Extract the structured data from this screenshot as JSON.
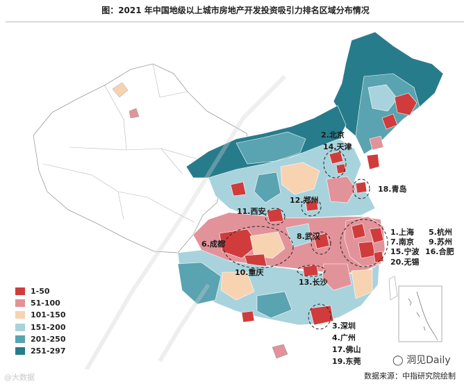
{
  "title": "图：2021 年中国地级以上城市房地产开发投资吸引力排名区域分布情况",
  "legend": [
    {
      "label": "1-50",
      "color": "#d03c3c"
    },
    {
      "label": "51-100",
      "color": "#e2939a"
    },
    {
      "label": "101-150",
      "color": "#f7d3b2"
    },
    {
      "label": "151-200",
      "color": "#a8d3dc"
    },
    {
      "label": "201-250",
      "color": "#5aa3b0"
    },
    {
      "label": "251-297",
      "color": "#277c8c"
    }
  ],
  "city_labels": [
    {
      "id": "beijing",
      "text": "2.北京"
    },
    {
      "id": "tianjin",
      "text": "14.天津"
    },
    {
      "id": "qingdao",
      "text": "18.青岛"
    },
    {
      "id": "xian",
      "text": "11.西安"
    },
    {
      "id": "zhengzhou",
      "text": "12.郑州"
    },
    {
      "id": "chengdu",
      "text": "6.成都"
    },
    {
      "id": "wuhan",
      "text": "8.武汉"
    },
    {
      "id": "chongqing",
      "text": "10.重庆"
    },
    {
      "id": "changsha",
      "text": "13.长沙"
    },
    {
      "id": "shanghai",
      "text": "1.上海"
    },
    {
      "id": "hangzhou",
      "text": "5.杭州"
    },
    {
      "id": "nanjing",
      "text": "7.南京"
    },
    {
      "id": "suzhou",
      "text": "9.苏州"
    },
    {
      "id": "wuxi",
      "text": "20.无锡"
    },
    {
      "id": "ningbo",
      "text": "15.宁波"
    },
    {
      "id": "hefei",
      "text": "16.合肥"
    },
    {
      "id": "shenzhen",
      "text": "3.深圳"
    },
    {
      "id": "guangzhou",
      "text": "4.广州"
    },
    {
      "id": "foshan",
      "text": "17.佛山"
    },
    {
      "id": "dongguan",
      "text": "19.东莞"
    }
  ],
  "source": "数据来源：中指研究院绘制",
  "watermark_text": "洞见Daily",
  "watermark_small": "@大数据"
}
